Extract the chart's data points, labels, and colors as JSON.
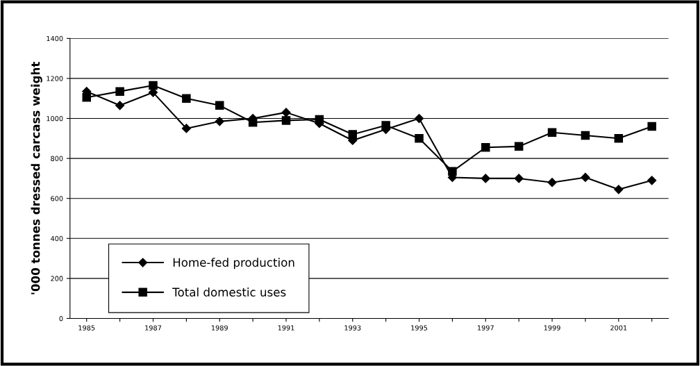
{
  "chart_data": {
    "type": "line",
    "ylabel": "'000 tonnes dressed carcass weight",
    "categories": [
      "1985",
      null,
      "1987",
      null,
      "1989",
      null,
      "1991",
      null,
      "1993",
      null,
      "1995",
      null,
      "1997",
      null,
      "1999",
      null,
      "2001",
      null
    ],
    "series": [
      {
        "name": "Home-fed production",
        "color": "#000000",
        "marker": "diamond",
        "values": [
          1135,
          1065,
          1130,
          950,
          985,
          1000,
          1030,
          975,
          890,
          945,
          1000,
          705,
          700,
          700,
          680,
          705,
          645,
          690
        ]
      },
      {
        "name": "Total domestic uses",
        "color": "#000000",
        "marker": "square",
        "values": [
          1105,
          1135,
          1165,
          1100,
          1065,
          980,
          990,
          995,
          920,
          965,
          900,
          735,
          855,
          860,
          930,
          915,
          900,
          960
        ]
      }
    ],
    "ylim": [
      0,
      1400
    ],
    "yticks": [
      0,
      200,
      400,
      600,
      800,
      1000,
      1200,
      1400
    ],
    "grid": "y",
    "legend": "bottom left",
    "line_style": "solid"
  }
}
